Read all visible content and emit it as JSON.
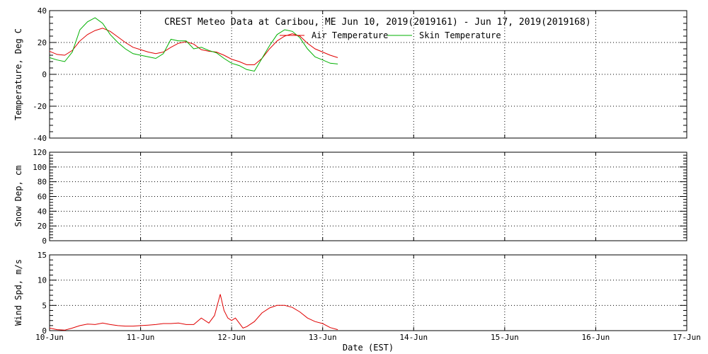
{
  "chart_data": {
    "type": "line",
    "title": "CREST Meteo Data at Caribou, ME   Jun 10, 2019(2019161) - Jun 17, 2019(2019168)",
    "xlabel": "Date (EST)",
    "x_ticks": [
      "10-Jun",
      "11-Jun",
      "12-Jun",
      "13-Jun",
      "14-Jun",
      "15-Jun",
      "16-Jun",
      "17-Jun"
    ],
    "xlim": [
      "2019-06-10 00:00",
      "2019-06-17 00:00"
    ],
    "grid": "dotted",
    "legend_placement": "top-center",
    "panels": [
      {
        "ylabel": "Temperature, Deg C",
        "ylim": [
          -40,
          40
        ],
        "y_ticks": [
          "-40",
          "-20",
          "0",
          "20",
          "40"
        ],
        "series": [
          {
            "name": "Air Temperature",
            "color": "#e00000",
            "points": [
              [
                "2019-06-10 00:00",
                14.5
              ],
              [
                "2019-06-10 02:00",
                12.5
              ],
              [
                "2019-06-10 04:00",
                12
              ],
              [
                "2019-06-10 06:00",
                15
              ],
              [
                "2019-06-10 08:00",
                21
              ],
              [
                "2019-06-10 10:00",
                25
              ],
              [
                "2019-06-10 12:00",
                27.5
              ],
              [
                "2019-06-10 14:00",
                29
              ],
              [
                "2019-06-10 16:00",
                27
              ],
              [
                "2019-06-10 18:00",
                23.5
              ],
              [
                "2019-06-10 20:00",
                20
              ],
              [
                "2019-06-10 22:00",
                17
              ],
              [
                "2019-06-11 00:00",
                15.5
              ],
              [
                "2019-06-11 02:00",
                14
              ],
              [
                "2019-06-11 04:00",
                13
              ],
              [
                "2019-06-11 06:00",
                14
              ],
              [
                "2019-06-11 08:00",
                17
              ],
              [
                "2019-06-11 10:00",
                19.5
              ],
              [
                "2019-06-11 12:00",
                20.5
              ],
              [
                "2019-06-11 14:00",
                19
              ],
              [
                "2019-06-11 16:00",
                15.5
              ],
              [
                "2019-06-11 18:00",
                14.5
              ],
              [
                "2019-06-11 20:00",
                14
              ],
              [
                "2019-06-11 22:00",
                12
              ],
              [
                "2019-06-12 00:00",
                9.5
              ],
              [
                "2019-06-12 02:00",
                8
              ],
              [
                "2019-06-12 04:00",
                6
              ],
              [
                "2019-06-12 06:00",
                6
              ],
              [
                "2019-06-12 08:00",
                10
              ],
              [
                "2019-06-12 10:00",
                16
              ],
              [
                "2019-06-12 12:00",
                21
              ],
              [
                "2019-06-12 14:00",
                24
              ],
              [
                "2019-06-12 16:00",
                25.5
              ],
              [
                "2019-06-12 18:00",
                24
              ],
              [
                "2019-06-12 20:00",
                19.5
              ],
              [
                "2019-06-12 22:00",
                16
              ],
              [
                "2019-06-13 00:00",
                14
              ],
              [
                "2019-06-13 02:00",
                12
              ],
              [
                "2019-06-13 04:00",
                10.5
              ]
            ]
          },
          {
            "name": "Skin Temperature",
            "color": "#00b000",
            "points": [
              [
                "2019-06-10 00:00",
                10.5
              ],
              [
                "2019-06-10 02:00",
                9
              ],
              [
                "2019-06-10 04:00",
                8
              ],
              [
                "2019-06-10 06:00",
                14
              ],
              [
                "2019-06-10 08:00",
                28
              ],
              [
                "2019-06-10 10:00",
                33
              ],
              [
                "2019-06-10 12:00",
                35.5
              ],
              [
                "2019-06-10 14:00",
                32
              ],
              [
                "2019-06-10 16:00",
                25
              ],
              [
                "2019-06-10 18:00",
                20
              ],
              [
                "2019-06-10 20:00",
                16
              ],
              [
                "2019-06-10 22:00",
                13
              ],
              [
                "2019-06-11 00:00",
                12
              ],
              [
                "2019-06-11 02:00",
                11
              ],
              [
                "2019-06-11 04:00",
                10
              ],
              [
                "2019-06-11 06:00",
                13
              ],
              [
                "2019-06-11 08:00",
                22
              ],
              [
                "2019-06-11 10:00",
                21
              ],
              [
                "2019-06-11 12:00",
                21
              ],
              [
                "2019-06-11 14:00",
                16
              ],
              [
                "2019-06-11 16:00",
                17
              ],
              [
                "2019-06-11 18:00",
                15
              ],
              [
                "2019-06-11 20:00",
                13.5
              ],
              [
                "2019-06-11 22:00",
                10
              ],
              [
                "2019-06-12 00:00",
                7
              ],
              [
                "2019-06-12 02:00",
                5.5
              ],
              [
                "2019-06-12 04:00",
                3
              ],
              [
                "2019-06-12 06:00",
                2
              ],
              [
                "2019-06-12 08:00",
                10
              ],
              [
                "2019-06-12 10:00",
                18
              ],
              [
                "2019-06-12 12:00",
                25
              ],
              [
                "2019-06-12 14:00",
                28
              ],
              [
                "2019-06-12 16:00",
                27
              ],
              [
                "2019-06-12 18:00",
                23
              ],
              [
                "2019-06-12 20:00",
                16
              ],
              [
                "2019-06-12 22:00",
                11
              ],
              [
                "2019-06-13 00:00",
                9
              ],
              [
                "2019-06-13 02:00",
                7
              ],
              [
                "2019-06-13 04:00",
                6.5
              ]
            ]
          }
        ]
      },
      {
        "ylabel": "Snow Dep, cm",
        "ylim": [
          0,
          120
        ],
        "y_ticks": [
          "0",
          "20",
          "40",
          "60",
          "80",
          "100",
          "120"
        ],
        "series": []
      },
      {
        "ylabel": "Wind Spd, m/s",
        "ylim": [
          0,
          15
        ],
        "y_ticks": [
          "0",
          "5",
          "10",
          "15"
        ],
        "series": [
          {
            "name": "",
            "color": "#e00000",
            "points": [
              [
                "2019-06-10 00:00",
                0.5
              ],
              [
                "2019-06-10 02:00",
                0.2
              ],
              [
                "2019-06-10 04:00",
                0.1
              ],
              [
                "2019-06-10 06:00",
                0.5
              ],
              [
                "2019-06-10 08:00",
                1
              ],
              [
                "2019-06-10 10:00",
                1.3
              ],
              [
                "2019-06-10 12:00",
                1.2
              ],
              [
                "2019-06-10 14:00",
                1.5
              ],
              [
                "2019-06-10 16:00",
                1.2
              ],
              [
                "2019-06-10 18:00",
                1
              ],
              [
                "2019-06-10 20:00",
                0.9
              ],
              [
                "2019-06-10 22:00",
                0.9
              ],
              [
                "2019-06-11 00:00",
                1
              ],
              [
                "2019-06-11 02:00",
                1.1
              ],
              [
                "2019-06-11 04:00",
                1.2
              ],
              [
                "2019-06-11 06:00",
                1.4
              ],
              [
                "2019-06-11 08:00",
                1.4
              ],
              [
                "2019-06-11 10:00",
                1.5
              ],
              [
                "2019-06-11 12:00",
                1.2
              ],
              [
                "2019-06-11 14:00",
                1.2
              ],
              [
                "2019-06-11 16:00",
                2.5
              ],
              [
                "2019-06-11 18:00",
                1.5
              ],
              [
                "2019-06-11 19:30",
                3
              ],
              [
                "2019-06-11 21:00",
                7.2
              ],
              [
                "2019-06-11 22:00",
                4
              ],
              [
                "2019-06-11 23:00",
                2.5
              ],
              [
                "2019-06-12 00:00",
                2
              ],
              [
                "2019-06-12 01:00",
                2.5
              ],
              [
                "2019-06-12 02:00",
                1.5
              ],
              [
                "2019-06-12 03:00",
                0.5
              ],
              [
                "2019-06-12 04:00",
                0.8
              ],
              [
                "2019-06-12 06:00",
                1.8
              ],
              [
                "2019-06-12 08:00",
                3.5
              ],
              [
                "2019-06-12 10:00",
                4.5
              ],
              [
                "2019-06-12 12:00",
                5
              ],
              [
                "2019-06-12 14:00",
                5
              ],
              [
                "2019-06-12 16:00",
                4.6
              ],
              [
                "2019-06-12 18:00",
                3.7
              ],
              [
                "2019-06-12 20:00",
                2.5
              ],
              [
                "2019-06-12 22:00",
                1.8
              ],
              [
                "2019-06-13 00:00",
                1.4
              ],
              [
                "2019-06-13 02:00",
                0.6
              ],
              [
                "2019-06-13 04:00",
                0.2
              ]
            ]
          }
        ]
      }
    ]
  }
}
